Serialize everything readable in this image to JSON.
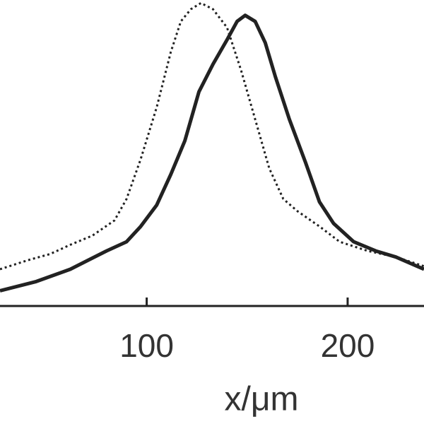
{
  "chart_data": {
    "type": "line",
    "xlabel": "x/μm",
    "xlim": [
      27,
      238
    ],
    "xticks": [
      100,
      200
    ],
    "ylim": [
      0,
      1
    ],
    "series": [
      {
        "color": "#222222",
        "style": "solid",
        "x": [
          27,
          45,
          62,
          80,
          90,
          97,
          105,
          112,
          119,
          126,
          133,
          140,
          145,
          149,
          154,
          159,
          164,
          171,
          179,
          186,
          193,
          203,
          214,
          224,
          238
        ],
        "values": [
          0.05,
          0.08,
          0.12,
          0.18,
          0.21,
          0.26,
          0.33,
          0.43,
          0.54,
          0.7,
          0.79,
          0.87,
          0.93,
          0.95,
          0.93,
          0.86,
          0.75,
          0.61,
          0.47,
          0.34,
          0.27,
          0.21,
          0.18,
          0.16,
          0.12
        ]
      },
      {
        "color": "#222222",
        "style": "dotted",
        "x": [
          27,
          41,
          52,
          62,
          73,
          84,
          90,
          97,
          105,
          112,
          117,
          122,
          127,
          133,
          140,
          147,
          154,
          161,
          168,
          175,
          186,
          196,
          210,
          224,
          238
        ],
        "values": [
          0.12,
          0.15,
          0.17,
          0.2,
          0.23,
          0.28,
          0.35,
          0.48,
          0.65,
          0.83,
          0.93,
          0.97,
          0.99,
          0.97,
          0.91,
          0.77,
          0.61,
          0.45,
          0.35,
          0.31,
          0.26,
          0.21,
          0.18,
          0.16,
          0.13
        ]
      }
    ]
  }
}
